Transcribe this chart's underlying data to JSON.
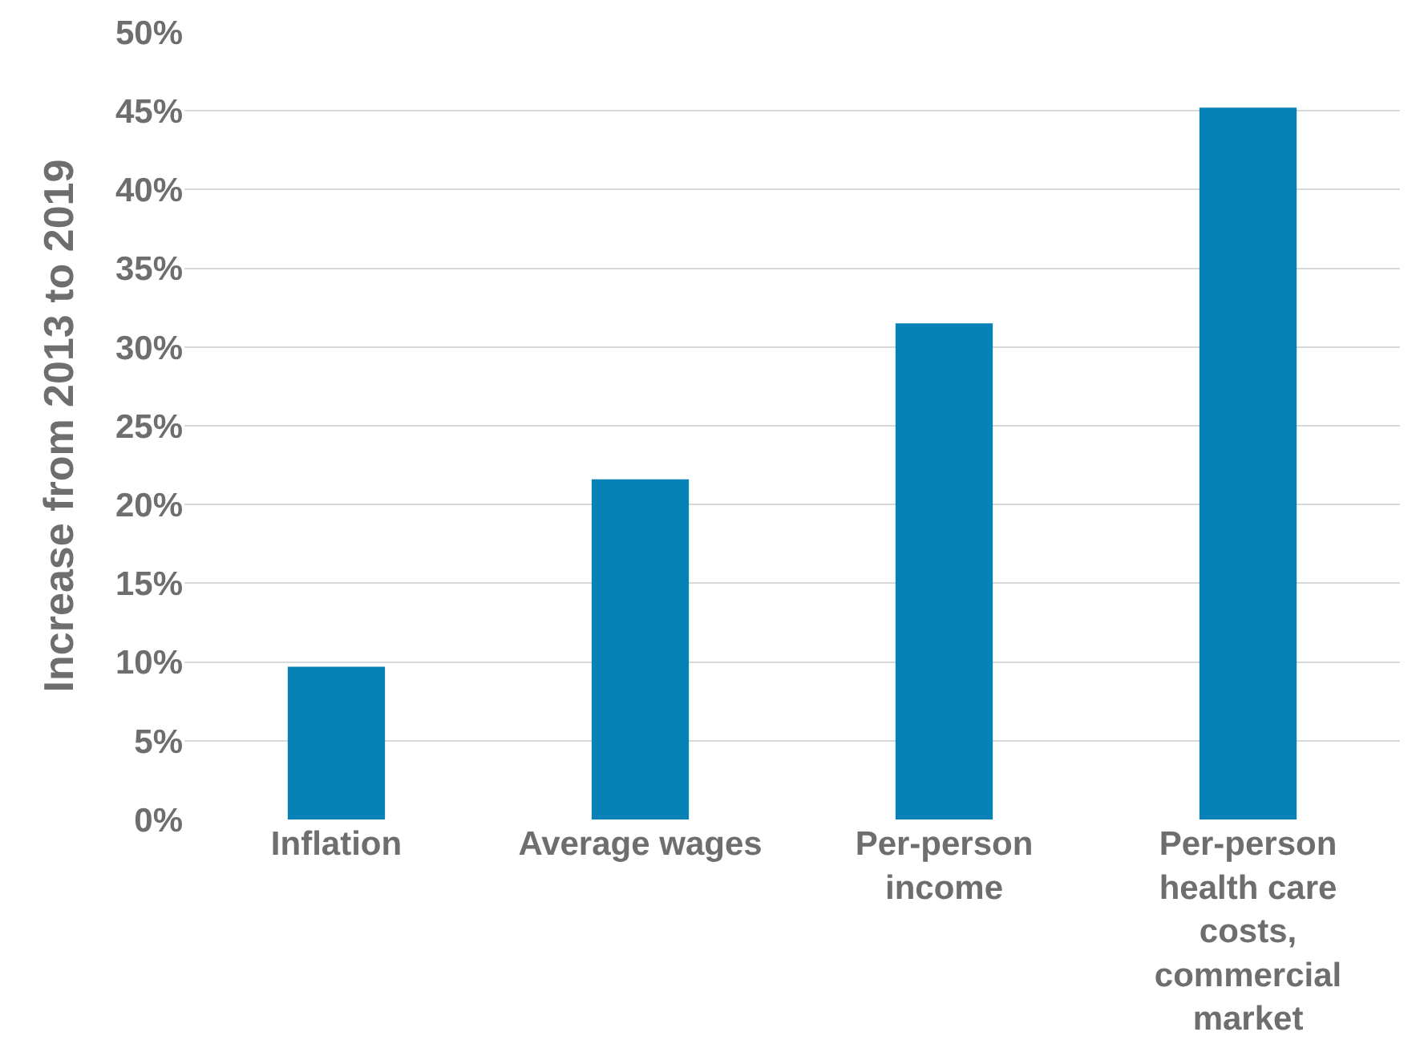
{
  "chart_data": {
    "type": "bar",
    "ylabel": "Increase from 2013 to 2019",
    "categories": [
      "Inflation",
      "Average wages",
      "Per-person income",
      "Per-person health care costs, commercial market"
    ],
    "values": [
      9.7,
      21.6,
      31.5,
      45.2
    ],
    "color": "#0782b6",
    "ylim": [
      0,
      50
    ],
    "yticks": [
      {
        "value": 0,
        "label": "0%"
      },
      {
        "value": 5,
        "label": "5%"
      },
      {
        "value": 10,
        "label": "10%"
      },
      {
        "value": 15,
        "label": "15%"
      },
      {
        "value": 20,
        "label": "20%"
      },
      {
        "value": 25,
        "label": "25%"
      },
      {
        "value": 30,
        "label": "30%"
      },
      {
        "value": 35,
        "label": "35%"
      },
      {
        "value": 40,
        "label": "40%"
      },
      {
        "value": 45,
        "label": "45%"
      },
      {
        "value": 50,
        "label": "50%"
      }
    ],
    "grid": "y"
  }
}
